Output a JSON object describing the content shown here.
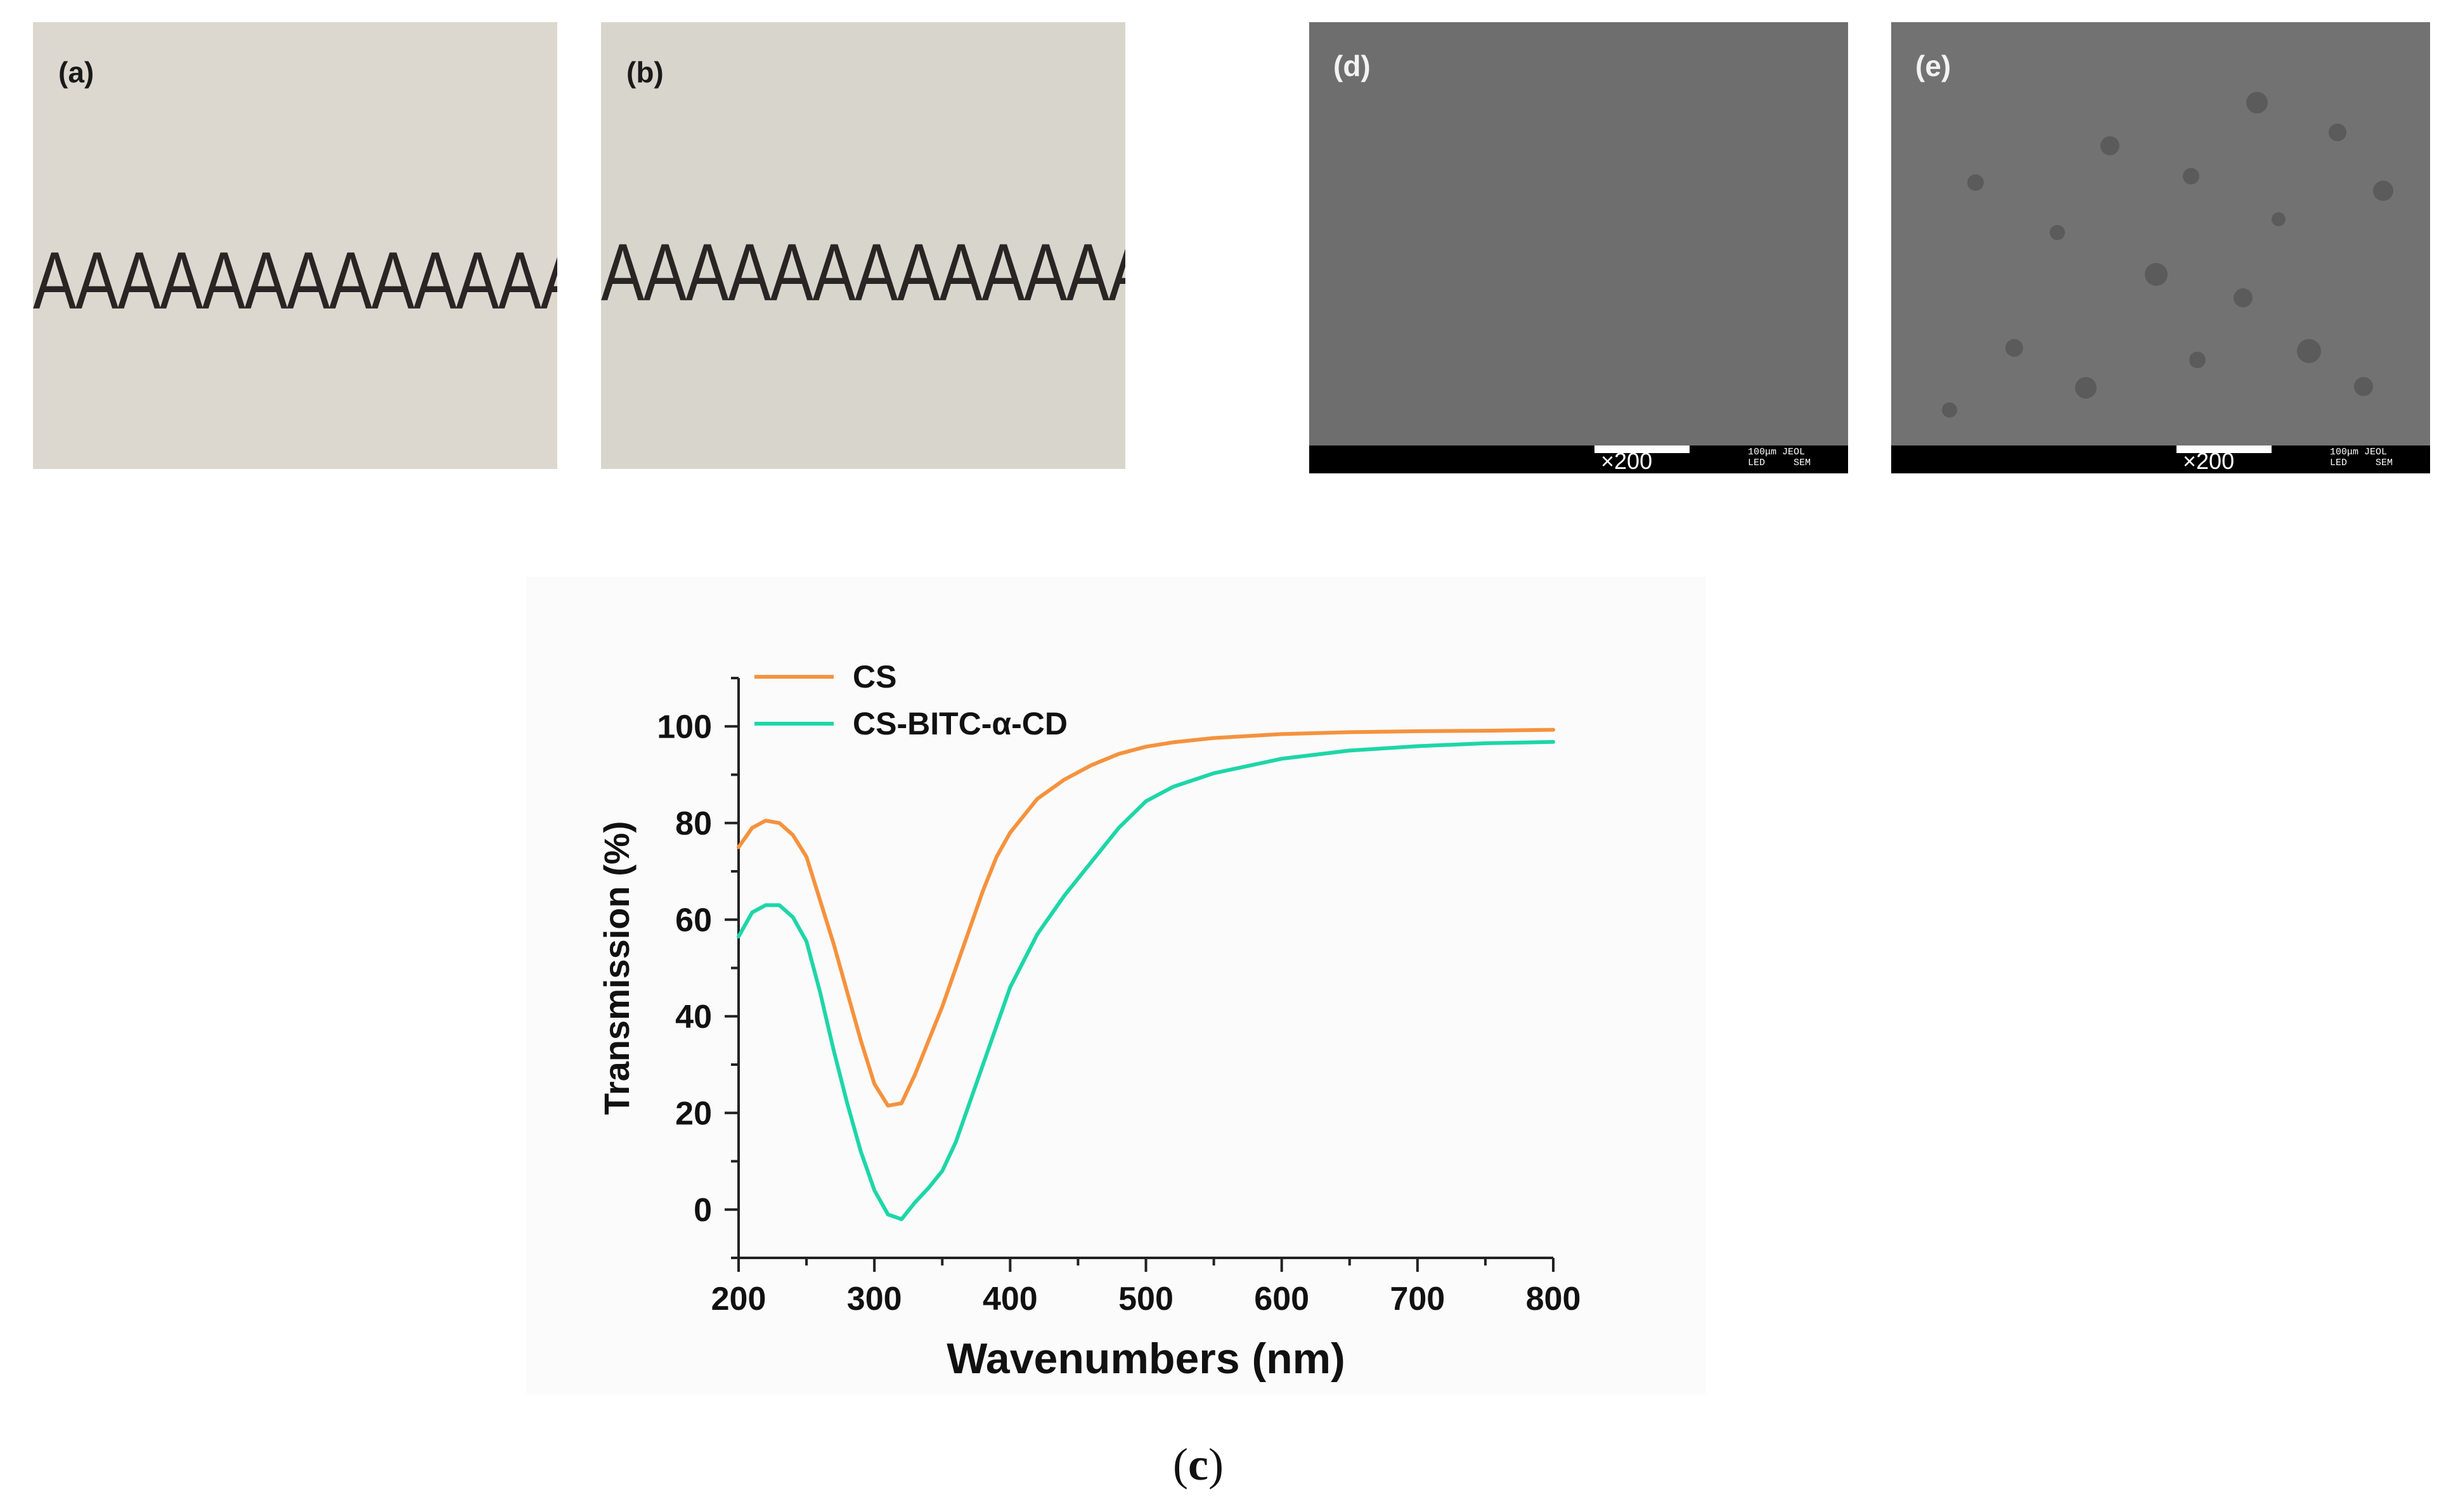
{
  "panels": {
    "a": {
      "label": "(a)",
      "letters": "AAAAAAAAAAAAA"
    },
    "b": {
      "label": "(b)",
      "letters": "AAAAAAAAAAAAA"
    },
    "d": {
      "label": "(d)",
      "scale_text": "100μm JEOL\nLED     SEM",
      "magnification": "×200"
    },
    "e": {
      "label": "(e)",
      "scale_text": "100μm JEOL\nLED     SEM",
      "magnification": "×200"
    }
  },
  "caption": {
    "open": "(",
    "letter": "c",
    "close": ")"
  },
  "chart_data": {
    "type": "line",
    "xlabel": "Wavenumbers (nm)",
    "ylabel": "Transmission (%)",
    "xlim": [
      200,
      800
    ],
    "ylim": [
      -10,
      110
    ],
    "xticks": [
      200,
      300,
      400,
      500,
      600,
      700,
      800
    ],
    "yticks": [
      0,
      20,
      40,
      60,
      80,
      100
    ],
    "grid": false,
    "legend_position": "top-left",
    "series": [
      {
        "name": "CS",
        "color": "#f5923e",
        "x": [
          200,
          210,
          220,
          230,
          240,
          250,
          260,
          270,
          280,
          290,
          300,
          310,
          320,
          330,
          340,
          350,
          360,
          370,
          380,
          390,
          400,
          420,
          440,
          460,
          480,
          500,
          520,
          550,
          600,
          650,
          700,
          750,
          800
        ],
        "y": [
          75,
          79,
          80.5,
          80,
          77.5,
          73,
          64,
          55,
          45,
          35,
          26,
          21.5,
          22,
          28,
          35,
          42,
          50,
          58,
          66,
          73,
          78,
          85,
          89,
          92,
          94.3,
          95.8,
          96.7,
          97.6,
          98.4,
          98.8,
          99.0,
          99.1,
          99.3
        ]
      },
      {
        "name": "CS-BITC-α-CD",
        "color": "#1ed6a8",
        "x": [
          200,
          210,
          220,
          230,
          240,
          250,
          260,
          270,
          280,
          290,
          300,
          310,
          320,
          330,
          340,
          350,
          360,
          370,
          380,
          390,
          400,
          420,
          440,
          460,
          480,
          500,
          520,
          550,
          600,
          650,
          700,
          750,
          800
        ],
        "y": [
          56.5,
          61.5,
          63,
          63,
          60.5,
          55.5,
          45,
          33,
          22,
          12,
          4,
          -1,
          -2,
          1.5,
          4.5,
          8,
          14,
          22,
          30,
          38,
          46,
          57,
          65,
          72,
          79,
          84.5,
          87.5,
          90.3,
          93.3,
          95.0,
          95.9,
          96.5,
          96.8
        ]
      }
    ]
  }
}
